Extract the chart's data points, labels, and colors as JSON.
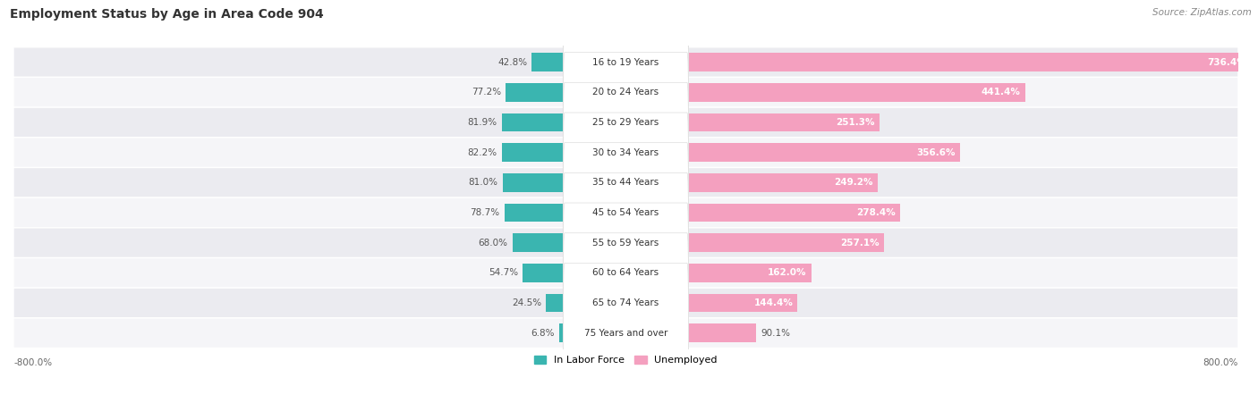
{
  "title": "Employment Status by Age in Area Code 904",
  "source": "Source: ZipAtlas.com",
  "categories": [
    "16 to 19 Years",
    "20 to 24 Years",
    "25 to 29 Years",
    "30 to 34 Years",
    "35 to 44 Years",
    "45 to 54 Years",
    "55 to 59 Years",
    "60 to 64 Years",
    "65 to 74 Years",
    "75 Years and over"
  ],
  "labor_force": [
    42.8,
    77.2,
    81.9,
    82.2,
    81.0,
    78.7,
    68.0,
    54.7,
    24.5,
    6.8
  ],
  "unemployed": [
    736.4,
    441.4,
    251.3,
    356.6,
    249.2,
    278.4,
    257.1,
    162.0,
    144.4,
    90.1
  ],
  "labor_force_color": "#3ab5b0",
  "unemployed_color": "#f4a0bf",
  "bg_even_color": "#ebebf0",
  "bg_odd_color": "#f5f5f8",
  "x_axis_max": 800.0,
  "legend_labor": "In Labor Force",
  "legend_unemployed": "Unemployed",
  "title_fontsize": 10,
  "source_fontsize": 7.5,
  "label_fontsize": 7.5,
  "cat_label_fontsize": 7.5,
  "tick_fontsize": 7.5,
  "legend_fontsize": 8
}
